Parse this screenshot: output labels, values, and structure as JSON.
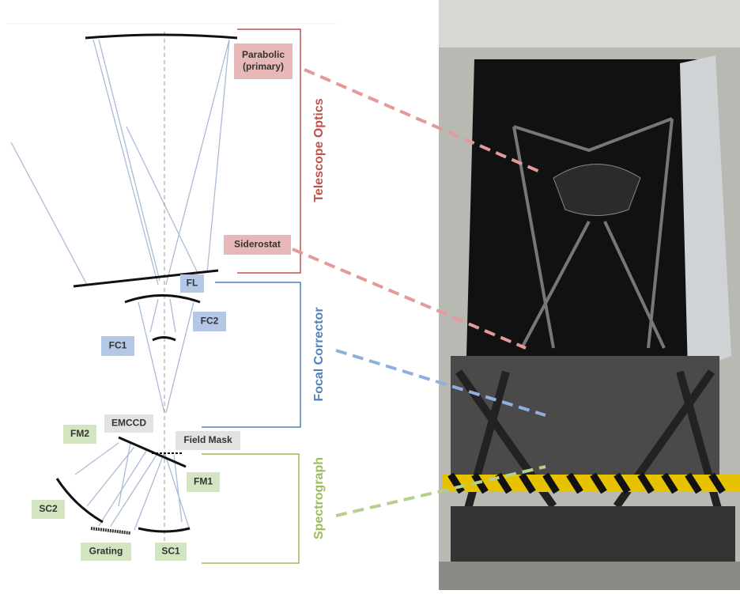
{
  "sections": [
    {
      "title": "Telescope Optics"
    },
    {
      "title": "Focal Corrector"
    },
    {
      "title": "Spectrograph"
    }
  ],
  "labels": [
    {
      "lines": [
        "Parabolic",
        "(primary)"
      ]
    },
    {
      "lines": [
        "Siderostat"
      ]
    },
    {
      "lines": [
        "FL"
      ]
    },
    {
      "lines": [
        "FC2"
      ]
    },
    {
      "lines": [
        "FC1"
      ]
    },
    {
      "lines": [
        "EMCCD"
      ]
    },
    {
      "lines": [
        "FM2"
      ]
    },
    {
      "lines": [
        "Field Mask"
      ]
    },
    {
      "lines": [
        "FM1"
      ]
    },
    {
      "lines": [
        "SC2"
      ]
    },
    {
      "lines": [
        "Grating"
      ]
    },
    {
      "lines": [
        "SC1"
      ]
    }
  ]
}
